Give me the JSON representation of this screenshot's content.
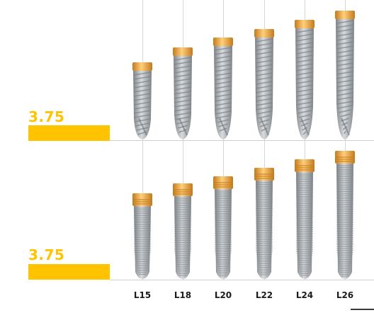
{
  "colors": {
    "accent": "#FFC300",
    "titanium": "#b8bcc0",
    "titanium_dark": "#7e8387",
    "collar": "#f0a640",
    "collar_dark": "#c47a1d",
    "guide_line": "#d7d7d7"
  },
  "rows": [
    {
      "diameter": "3.75",
      "model": "tapered-spiral"
    },
    {
      "diameter": "3.75",
      "model": "conical-threaded"
    }
  ],
  "lengths": [
    "L15",
    "L18",
    "L20",
    "L22",
    "L24",
    "L26"
  ]
}
